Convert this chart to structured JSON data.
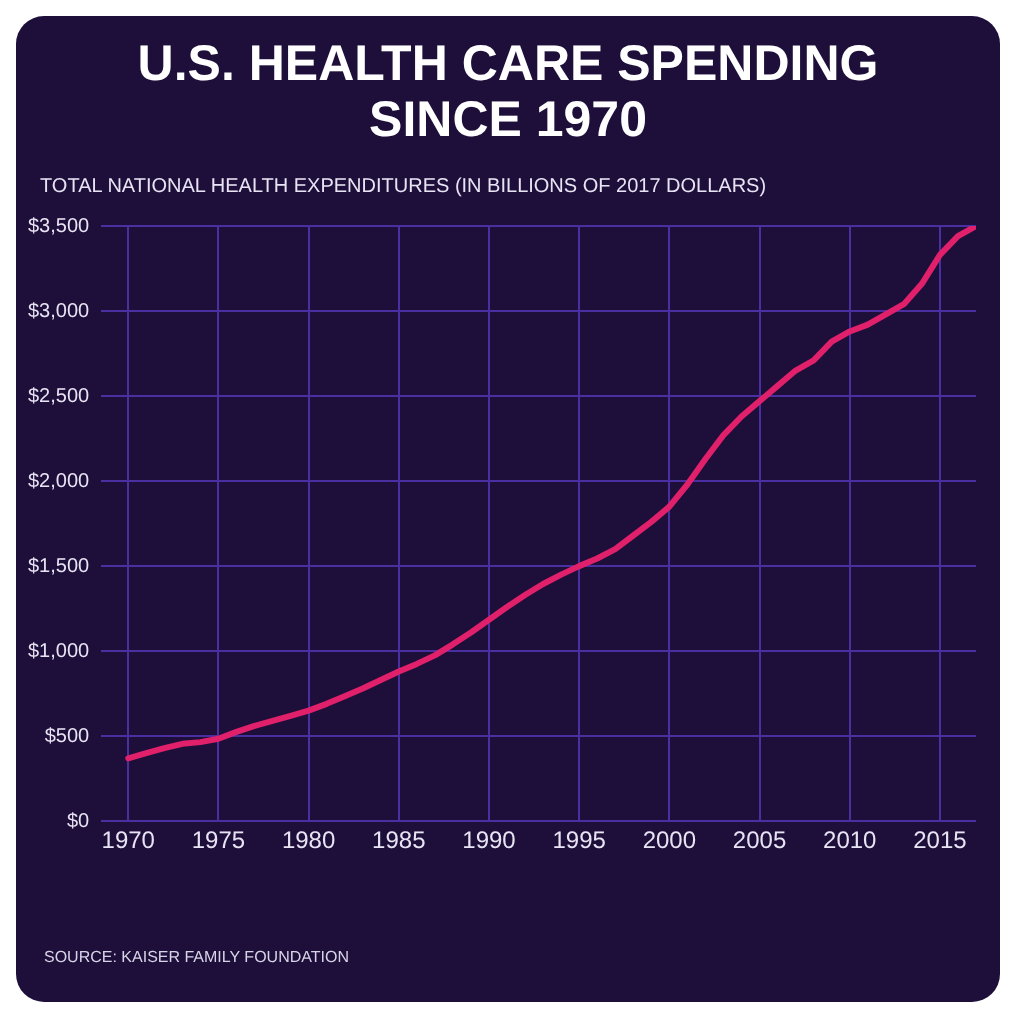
{
  "chart_data": {
    "type": "line",
    "title": "U.S. HEALTH CARE SPENDING SINCE 1970",
    "subtitle": "TOTAL NATIONAL HEALTH EXPENDITURES (IN BILLIONS OF 2017 DOLLARS)",
    "x": [
      1970,
      1971,
      1972,
      1973,
      1974,
      1975,
      1976,
      1977,
      1978,
      1979,
      1980,
      1981,
      1982,
      1983,
      1984,
      1985,
      1986,
      1987,
      1988,
      1989,
      1990,
      1991,
      1992,
      1993,
      1994,
      1995,
      1996,
      1997,
      1998,
      1999,
      2000,
      2001,
      2002,
      2003,
      2004,
      2005,
      2006,
      2007,
      2008,
      2009,
      2010,
      2011,
      2012,
      2013,
      2014,
      2015,
      2016,
      2017
    ],
    "series": [
      {
        "color": "#e0206a",
        "values": [
          370,
          400,
          430,
          455,
          465,
          485,
          525,
          560,
          590,
          620,
          650,
          690,
          735,
          780,
          830,
          880,
          925,
          975,
          1040,
          1110,
          1185,
          1260,
          1330,
          1395,
          1450,
          1500,
          1545,
          1600,
          1680,
          1760,
          1850,
          1980,
          2130,
          2270,
          2380,
          2470,
          2560,
          2650,
          2710,
          2820,
          2880,
          2920,
          2980,
          3040,
          3160,
          3330,
          3440,
          3500
        ]
      }
    ],
    "xlim": [
      1968.5,
      2017
    ],
    "xticks": [
      1970,
      1975,
      1980,
      1985,
      1990,
      1995,
      2000,
      2005,
      2010,
      2015
    ],
    "ylim": [
      0,
      3500
    ],
    "yticks": [
      {
        "value": 0,
        "label": "$0"
      },
      {
        "value": 500,
        "label": "$500"
      },
      {
        "value": 1000,
        "label": "$1,000"
      },
      {
        "value": 1500,
        "label": "$1,500"
      },
      {
        "value": 2000,
        "label": "$2,000"
      },
      {
        "value": 2500,
        "label": "$2,500"
      },
      {
        "value": 3000,
        "label": "$3,000"
      },
      {
        "value": 3500,
        "label": "$3,500"
      }
    ],
    "grid": true,
    "legend": false,
    "marker": "none",
    "line_style": "solid",
    "annotations": [
      "SOURCE:  KAISER FAMILY FOUNDATION"
    ]
  }
}
